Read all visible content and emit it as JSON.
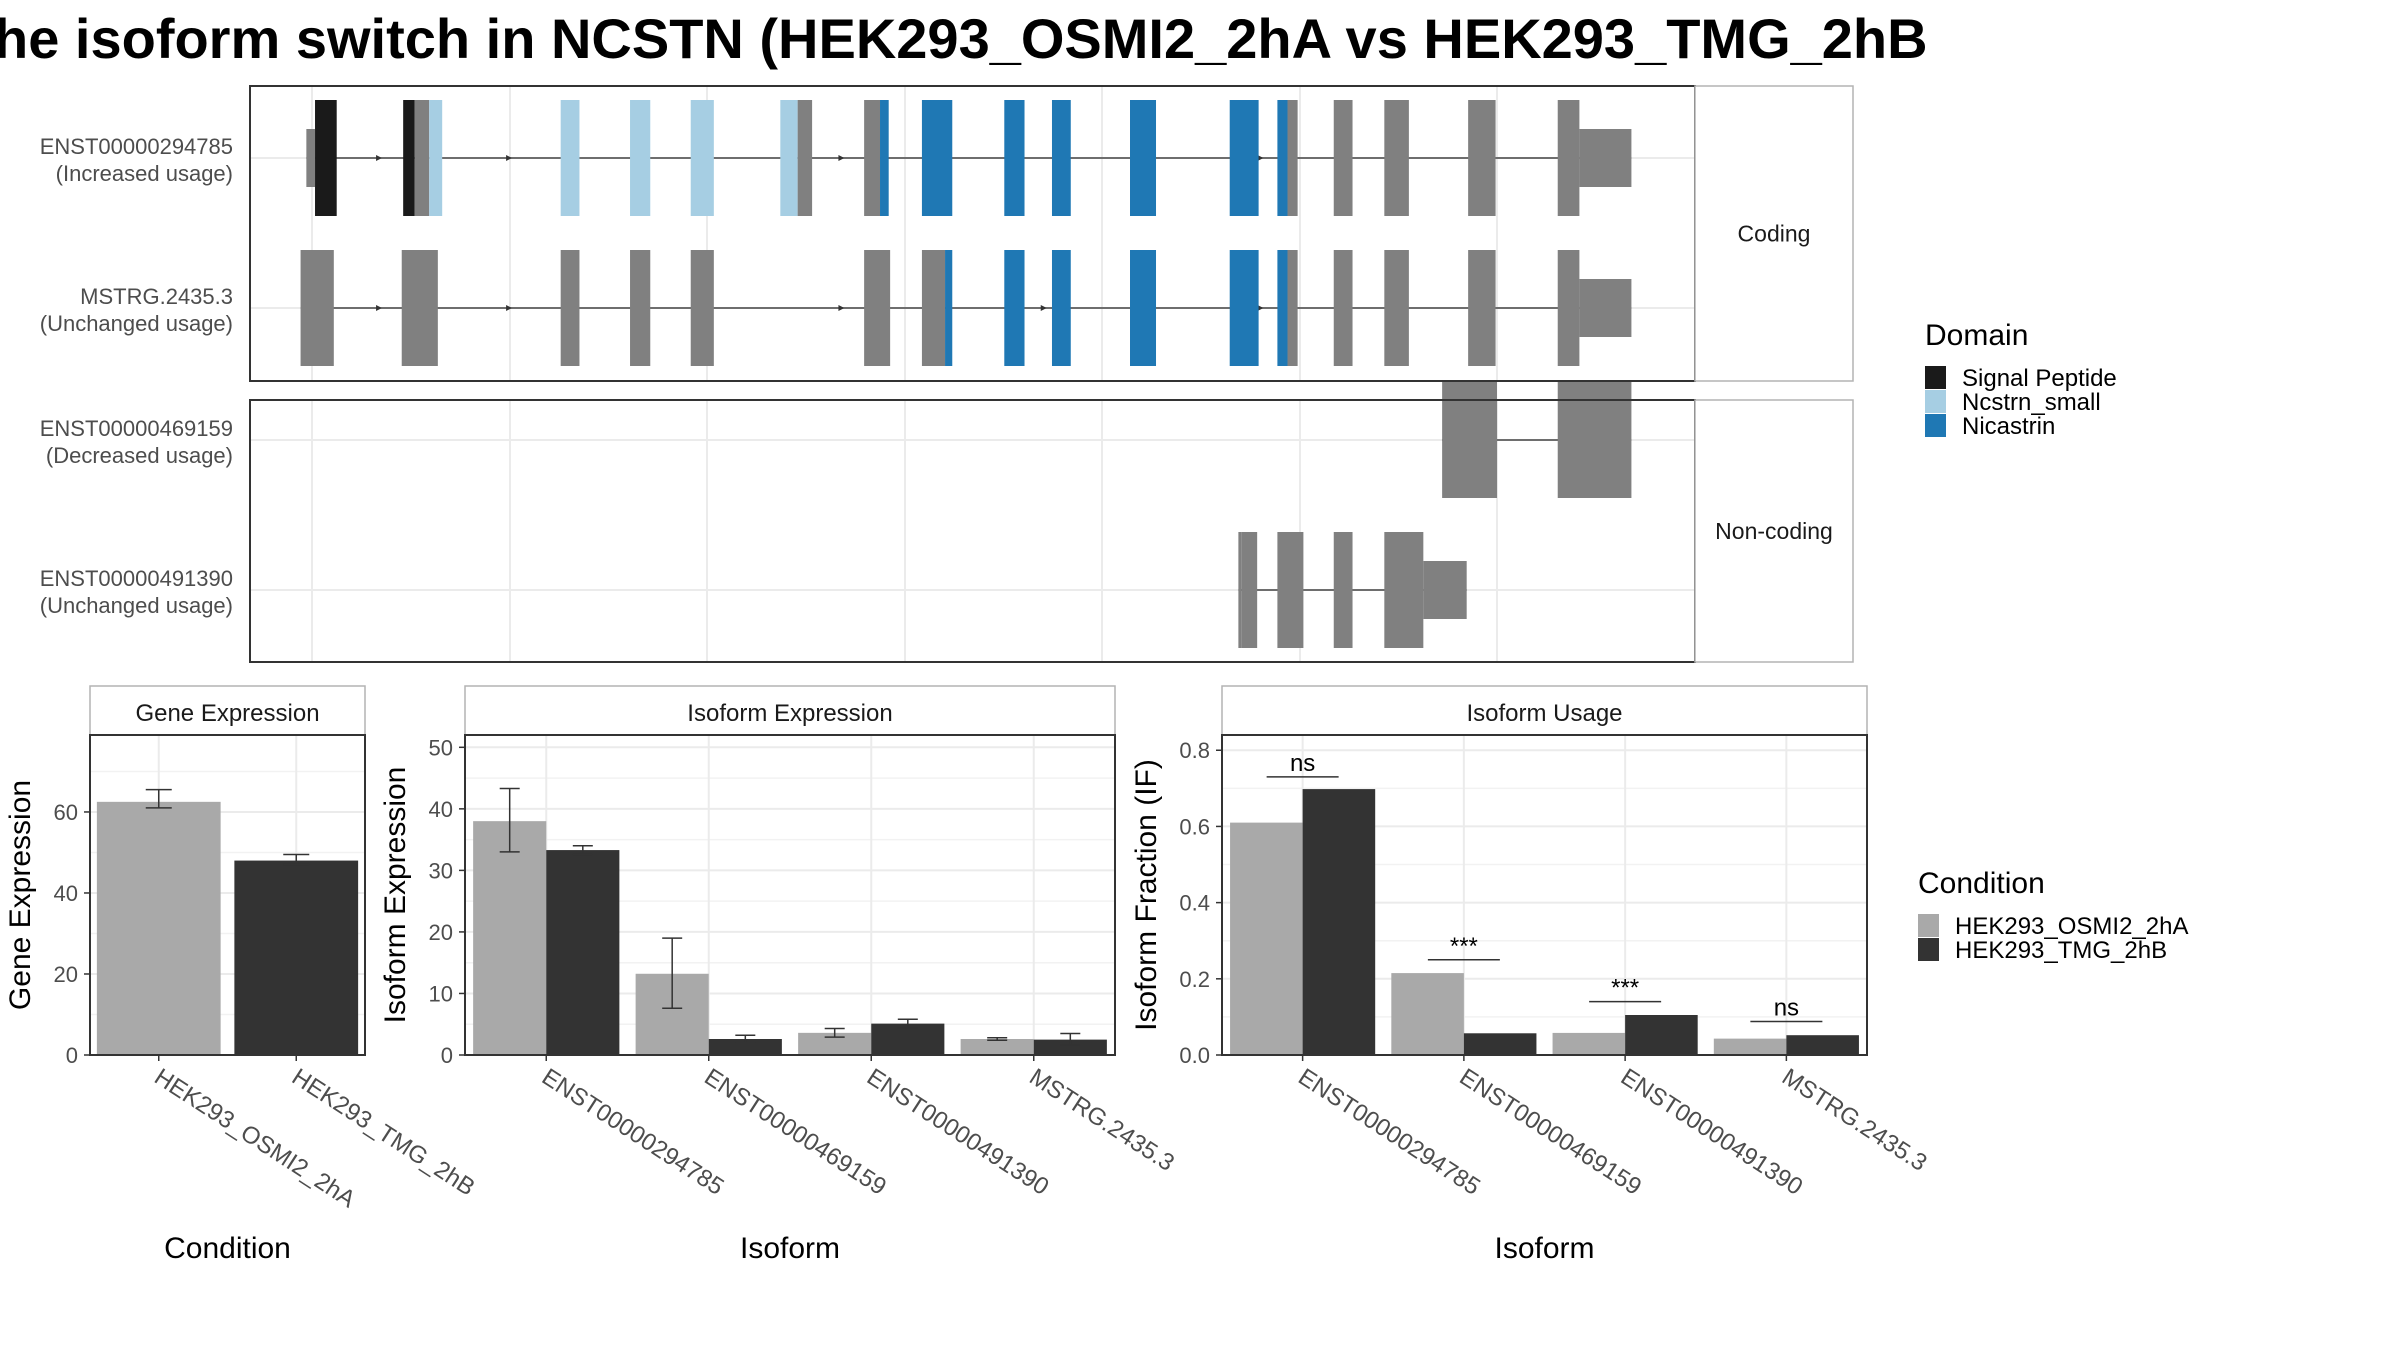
{
  "title": "he isoform switch in NCSTN (HEK293_OSMI2_2hA vs HEK293_TMG_2hB",
  "colors": {
    "signal_peptide": "#1a1a1a",
    "ncstrn_small": "#a6cee3",
    "nicastrin": "#1f78b4",
    "exon_grey": "#808080",
    "cond_a": "#a9a9a9",
    "cond_b": "#333333"
  },
  "structure": {
    "facets": [
      {
        "label": "Coding",
        "isoforms": [
          {
            "name": "ENST00000294785",
            "usage": "(Increased usage)",
            "strand_arrows": [
              0.09,
              0.18,
              0.31,
              0.41,
              0.7
            ],
            "exons": [
              {
                "start": 0.045,
                "end": 0.06,
                "domain": "signal_peptide",
                "utr": false
              },
              {
                "start": 0.039,
                "end": 0.045,
                "domain": "none",
                "utr": true
              },
              {
                "start": 0.106,
                "end": 0.114,
                "domain": "signal_peptide",
                "utr": false
              },
              {
                "start": 0.114,
                "end": 0.124,
                "domain": "none",
                "utr": false
              },
              {
                "start": 0.124,
                "end": 0.133,
                "domain": "ncstrn_small",
                "utr": false
              },
              {
                "start": 0.215,
                "end": 0.228,
                "domain": "ncstrn_small",
                "utr": false
              },
              {
                "start": 0.263,
                "end": 0.277,
                "domain": "ncstrn_small",
                "utr": false
              },
              {
                "start": 0.305,
                "end": 0.321,
                "domain": "ncstrn_small",
                "utr": false
              },
              {
                "start": 0.367,
                "end": 0.379,
                "domain": "ncstrn_small",
                "utr": false
              },
              {
                "start": 0.379,
                "end": 0.389,
                "domain": "none",
                "utr": false
              },
              {
                "start": 0.425,
                "end": 0.436,
                "domain": "none",
                "utr": false
              },
              {
                "start": 0.436,
                "end": 0.442,
                "domain": "nicastrin",
                "utr": false
              },
              {
                "start": 0.465,
                "end": 0.486,
                "domain": "nicastrin",
                "utr": false
              },
              {
                "start": 0.522,
                "end": 0.536,
                "domain": "nicastrin",
                "utr": false
              },
              {
                "start": 0.555,
                "end": 0.568,
                "domain": "nicastrin",
                "utr": false
              },
              {
                "start": 0.609,
                "end": 0.627,
                "domain": "nicastrin",
                "utr": false
              },
              {
                "start": 0.678,
                "end": 0.698,
                "domain": "nicastrin",
                "utr": false
              },
              {
                "start": 0.711,
                "end": 0.718,
                "domain": "nicastrin",
                "utr": false
              },
              {
                "start": 0.718,
                "end": 0.725,
                "domain": "none",
                "utr": false
              },
              {
                "start": 0.75,
                "end": 0.763,
                "domain": "none",
                "utr": false
              },
              {
                "start": 0.785,
                "end": 0.802,
                "domain": "none",
                "utr": false
              },
              {
                "start": 0.843,
                "end": 0.862,
                "domain": "none",
                "utr": false
              },
              {
                "start": 0.905,
                "end": 0.92,
                "domain": "none",
                "utr": false
              },
              {
                "start": 0.92,
                "end": 0.956,
                "domain": "none",
                "utr": true
              }
            ]
          },
          {
            "name": "MSTRG.2435.3",
            "usage": "(Unchanged usage)",
            "strand_arrows": [
              0.09,
              0.18,
              0.31,
              0.41,
              0.55,
              0.7
            ],
            "exons": [
              {
                "start": 0.035,
                "end": 0.058,
                "domain": "none",
                "utr": false
              },
              {
                "start": 0.105,
                "end": 0.13,
                "domain": "none",
                "utr": false
              },
              {
                "start": 0.215,
                "end": 0.228,
                "domain": "none",
                "utr": false
              },
              {
                "start": 0.263,
                "end": 0.277,
                "domain": "none",
                "utr": false
              },
              {
                "start": 0.305,
                "end": 0.321,
                "domain": "none",
                "utr": false
              },
              {
                "start": 0.425,
                "end": 0.443,
                "domain": "none",
                "utr": false
              },
              {
                "start": 0.465,
                "end": 0.481,
                "domain": "none",
                "utr": false
              },
              {
                "start": 0.481,
                "end": 0.486,
                "domain": "nicastrin",
                "utr": false
              },
              {
                "start": 0.522,
                "end": 0.536,
                "domain": "nicastrin",
                "utr": false
              },
              {
                "start": 0.555,
                "end": 0.568,
                "domain": "nicastrin",
                "utr": false
              },
              {
                "start": 0.609,
                "end": 0.627,
                "domain": "nicastrin",
                "utr": false
              },
              {
                "start": 0.678,
                "end": 0.698,
                "domain": "nicastrin",
                "utr": false
              },
              {
                "start": 0.711,
                "end": 0.718,
                "domain": "nicastrin",
                "utr": false
              },
              {
                "start": 0.718,
                "end": 0.725,
                "domain": "none",
                "utr": false
              },
              {
                "start": 0.75,
                "end": 0.763,
                "domain": "none",
                "utr": false
              },
              {
                "start": 0.785,
                "end": 0.802,
                "domain": "none",
                "utr": false
              },
              {
                "start": 0.843,
                "end": 0.862,
                "domain": "none",
                "utr": false
              },
              {
                "start": 0.905,
                "end": 0.92,
                "domain": "none",
                "utr": false
              },
              {
                "start": 0.92,
                "end": 0.956,
                "domain": "none",
                "utr": true
              }
            ]
          }
        ]
      },
      {
        "label": "Non-coding",
        "isoforms": [
          {
            "name": "ENST00000469159",
            "usage": "(Decreased usage)",
            "strand_arrows": [],
            "exons": [
              {
                "start": 0.825,
                "end": 0.863,
                "domain": "none",
                "utr": false
              },
              {
                "start": 0.905,
                "end": 0.956,
                "domain": "none",
                "utr": false
              }
            ]
          },
          {
            "name": "ENST00000491390",
            "usage": "(Unchanged usage)",
            "strand_arrows": [],
            "exons": [
              {
                "start": 0.684,
                "end": 0.686,
                "domain": "none",
                "utr": false
              },
              {
                "start": 0.686,
                "end": 0.697,
                "domain": "none",
                "utr": false
              },
              {
                "start": 0.711,
                "end": 0.729,
                "domain": "none",
                "utr": false
              },
              {
                "start": 0.75,
                "end": 0.763,
                "domain": "none",
                "utr": false
              },
              {
                "start": 0.785,
                "end": 0.812,
                "domain": "none",
                "utr": false
              },
              {
                "start": 0.812,
                "end": 0.842,
                "domain": "none",
                "utr": true
              }
            ]
          }
        ]
      }
    ]
  },
  "legend_domain": {
    "title": "Domain",
    "items": [
      {
        "label": "Signal Peptide",
        "color": "#1a1a1a"
      },
      {
        "label": "Ncstrn_small",
        "color": "#a6cee3"
      },
      {
        "label": "Nicastrin",
        "color": "#1f78b4"
      }
    ]
  },
  "legend_condition": {
    "title": "Condition",
    "items": [
      {
        "label": "HEK293_OSMI2_2hA",
        "color": "#a9a9a9"
      },
      {
        "label": "HEK293_TMG_2hB",
        "color": "#333333"
      }
    ]
  },
  "chart_data": [
    {
      "type": "bar",
      "title": "Gene Expression",
      "xlabel": "Condition",
      "ylabel": "Gene Expression",
      "ylim": [
        0,
        79
      ],
      "yticks": [
        0,
        20,
        40,
        60
      ],
      "categories": [
        "HEK293_OSMI2_2hA",
        "HEK293_TMG_2hB"
      ],
      "values": [
        62.5,
        48
      ],
      "errors": [
        [
          61,
          65.5
        ],
        [
          47,
          49.5
        ]
      ],
      "colors": [
        "#a9a9a9",
        "#333333"
      ]
    },
    {
      "type": "bar",
      "title": "Isoform Expression",
      "xlabel": "Isoform",
      "ylabel": "Isoform Expression",
      "ylim": [
        0,
        52
      ],
      "yticks": [
        0,
        10,
        20,
        30,
        40,
        50
      ],
      "categories": [
        "ENST00000294785",
        "ENST00000469159",
        "ENST00000491390",
        "MSTRG.2435.3"
      ],
      "series": [
        {
          "name": "HEK293_OSMI2_2hA",
          "values": [
            38.0,
            13.2,
            3.6,
            2.6
          ],
          "errors": [
            [
              33.0,
              43.3
            ],
            [
              7.6,
              19.0
            ],
            [
              2.9,
              4.3
            ],
            [
              2.4,
              2.8
            ]
          ]
        },
        {
          "name": "HEK293_TMG_2hB",
          "values": [
            33.3,
            2.6,
            5.1,
            2.5
          ],
          "errors": [
            [
              32.6,
              34.0
            ],
            [
              2.0,
              3.2
            ],
            [
              4.4,
              5.8
            ],
            [
              1.6,
              3.5
            ]
          ]
        }
      ]
    },
    {
      "type": "bar",
      "title": "Isoform Usage",
      "xlabel": "Isoform",
      "ylabel": "Isoform Fraction (IF)",
      "ylim": [
        0,
        0.84
      ],
      "yticks": [
        0.0,
        0.2,
        0.4,
        0.6,
        0.8
      ],
      "ytick_labels": [
        "0.0",
        "0.2",
        "0.4",
        "0.6",
        "0.8"
      ],
      "categories": [
        "ENST00000294785",
        "ENST00000469159",
        "ENST00000491390",
        "MSTRG.2435.3"
      ],
      "series": [
        {
          "name": "HEK293_OSMI2_2hA",
          "values": [
            0.61,
            0.215,
            0.058,
            0.043
          ]
        },
        {
          "name": "HEK293_TMG_2hB",
          "values": [
            0.698,
            0.057,
            0.105,
            0.052
          ]
        }
      ],
      "significance": [
        "ns",
        "***",
        "***",
        "ns"
      ],
      "significance_y": [
        0.73,
        0.25,
        0.14,
        0.088
      ]
    }
  ]
}
